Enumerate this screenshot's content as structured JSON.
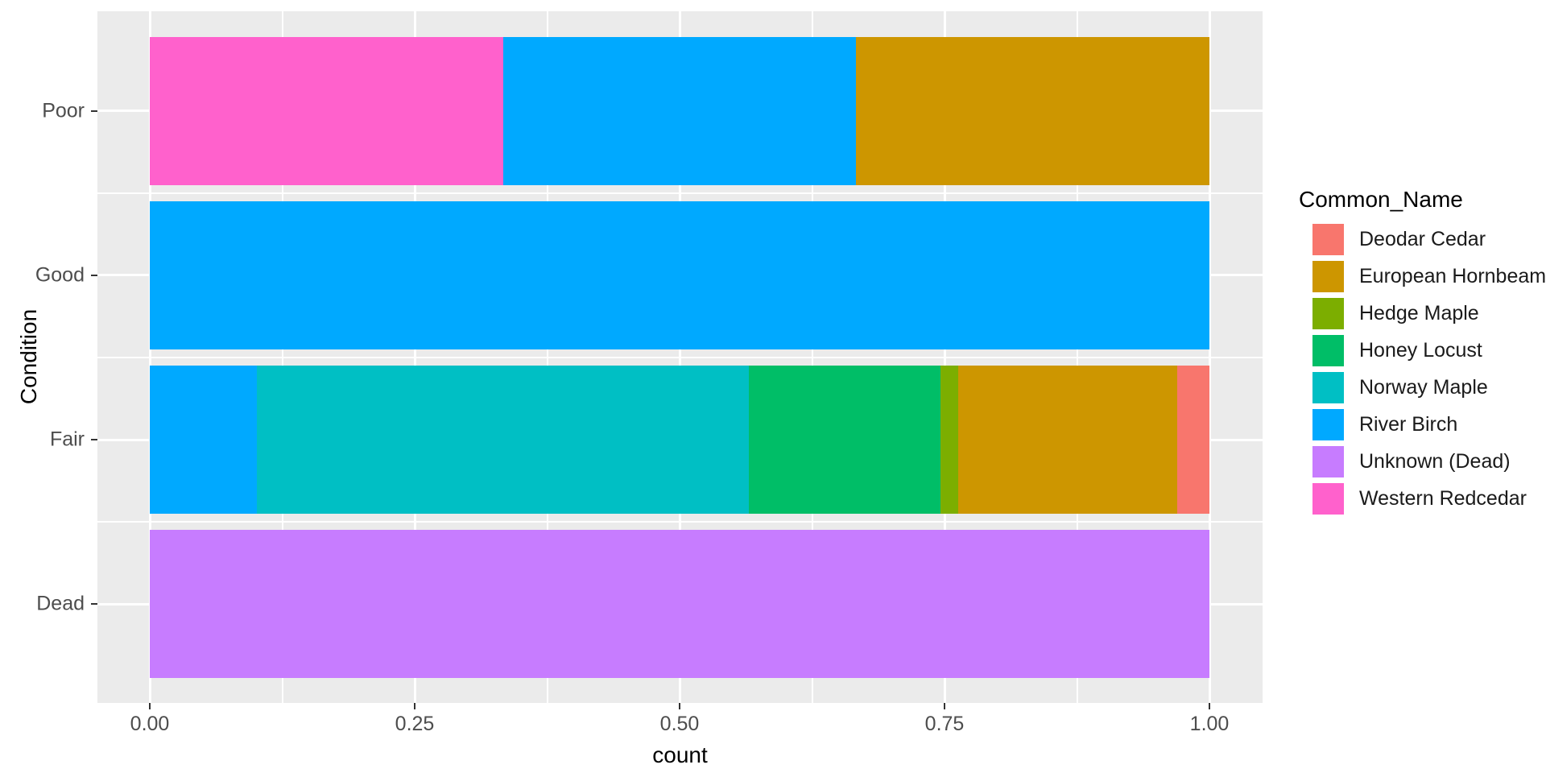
{
  "chart_data": {
    "type": "bar",
    "orientation": "horizontal",
    "stacked": true,
    "normalized_fill": true,
    "title": "",
    "xlabel": "count",
    "ylabel": "Condition",
    "xlim": [
      0,
      1
    ],
    "x_ticks": [
      "0.00",
      "0.25",
      "0.50",
      "0.75",
      "1.00"
    ],
    "x_tick_values": [
      0,
      0.25,
      0.5,
      0.75,
      1
    ],
    "grid": "white-on-grey",
    "panel_bg": "#EBEBEB",
    "grid_color": "#FFFFFF",
    "categories": [
      "Poor",
      "Good",
      "Fair",
      "Dead"
    ],
    "legend": {
      "title": "Common_Name",
      "position": "right",
      "entries": [
        {
          "label": "Deodar Cedar",
          "color": "#F8766D"
        },
        {
          "label": "European Hornbeam",
          "color": "#CD9600"
        },
        {
          "label": "Hedge Maple",
          "color": "#7CAE00"
        },
        {
          "label": "Honey Locust",
          "color": "#00BE67"
        },
        {
          "label": "Norway Maple",
          "color": "#00BFC4"
        },
        {
          "label": "River Birch",
          "color": "#00A9FF"
        },
        {
          "label": "Unknown (Dead)",
          "color": "#C77CFF"
        },
        {
          "label": "Western Redcedar",
          "color": "#FF61CC"
        }
      ]
    },
    "rows": [
      {
        "category": "Poor",
        "segments": [
          {
            "name": "Western Redcedar",
            "fraction": 0.3333
          },
          {
            "name": "River Birch",
            "fraction": 0.3333
          },
          {
            "name": "European Hornbeam",
            "fraction": 0.3334
          }
        ]
      },
      {
        "category": "Good",
        "segments": [
          {
            "name": "River Birch",
            "fraction": 1.0
          }
        ]
      },
      {
        "category": "Fair",
        "segments": [
          {
            "name": "River Birch",
            "fraction": 0.101
          },
          {
            "name": "Norway Maple",
            "fraction": 0.464
          },
          {
            "name": "Honey Locust",
            "fraction": 0.181
          },
          {
            "name": "Hedge Maple",
            "fraction": 0.017
          },
          {
            "name": "European Hornbeam",
            "fraction": 0.207
          },
          {
            "name": "Deodar Cedar",
            "fraction": 0.03
          }
        ]
      },
      {
        "category": "Dead",
        "segments": [
          {
            "name": "Unknown (Dead)",
            "fraction": 1.0
          }
        ]
      }
    ]
  }
}
